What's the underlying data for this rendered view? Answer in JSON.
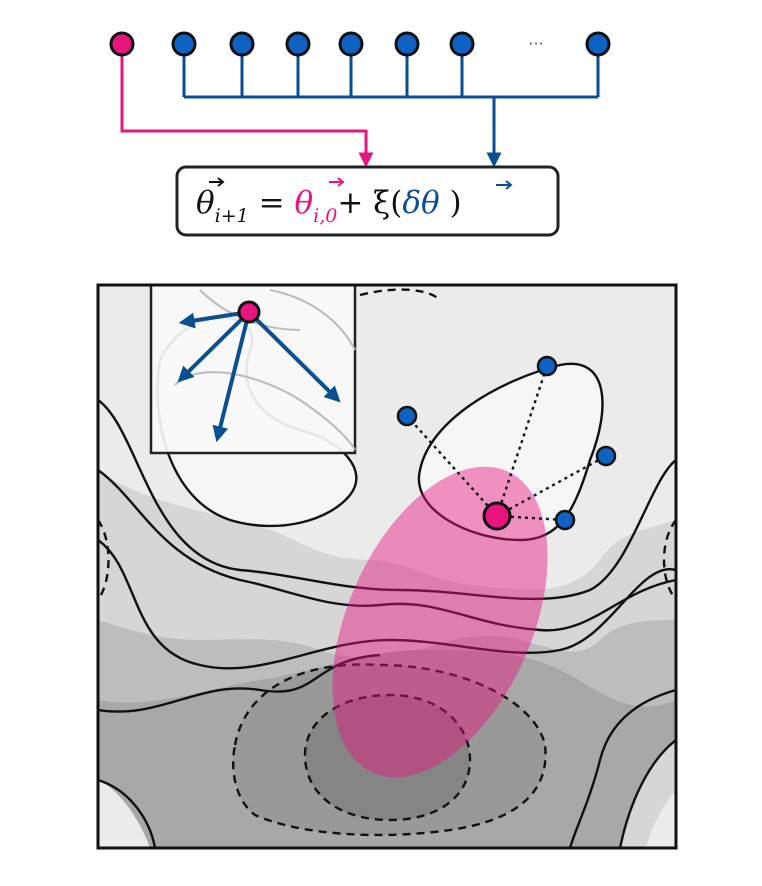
{
  "colors": {
    "pink": "#e8157f",
    "blue": "#0a4e94",
    "node_blue": "#0d62c4",
    "blob": "#f08ccb",
    "fill_lightest": "#f4f4f4",
    "fill_light": "#ebebeb",
    "fill_mid_light": "#d6d6d6",
    "fill_mid": "#bdbdbd",
    "fill_dark": "#9e9e9e",
    "fill_darkest": "#858585",
    "line": "#111111"
  },
  "top_row": {
    "ellipsis": "···"
  },
  "equation": {
    "lhs_theta": "θ",
    "lhs_sub": "i+1",
    "equals": " = ",
    "pink_theta": "θ",
    "pink_sub": "i,0",
    "plus_xi": "+ ξ(",
    "delta_theta": "δθ",
    "close_paren": " )",
    "vec_arrow": "⃗"
  },
  "icons": {
    "pink_node": "pink-circle-node",
    "blue_node": "blue-circle-node",
    "arrow": "arrow-down-icon"
  }
}
